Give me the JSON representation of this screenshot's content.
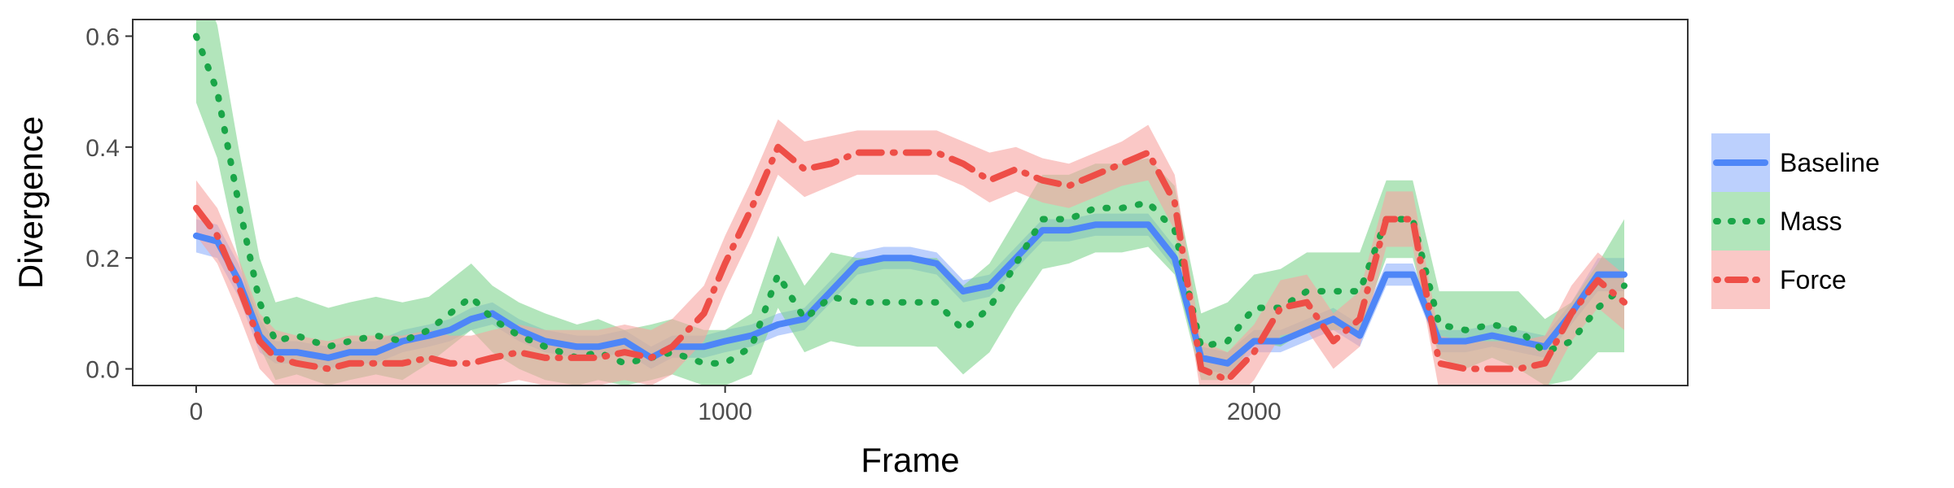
{
  "chart_data": {
    "type": "line",
    "title": "",
    "xlabel": "Frame",
    "ylabel": "Divergence",
    "xlim": [
      -120,
      2820
    ],
    "ylim": [
      -0.03,
      0.63
    ],
    "x_ticks": [
      0,
      1000,
      2000
    ],
    "x_tick_labels": [
      "0",
      "1000",
      "2000"
    ],
    "y_ticks": [
      0.0,
      0.2,
      0.4,
      0.6
    ],
    "y_tick_labels": [
      "0.0",
      "0.2",
      "0.4",
      "0.6"
    ],
    "grid": false,
    "legend_position": "right",
    "series": [
      {
        "name": "Baseline",
        "color": "#4e86f7",
        "band_color": "#8fb1fb",
        "line_style": "solid",
        "x": [
          0,
          40,
          80,
          120,
          150,
          190,
          250,
          290,
          340,
          390,
          440,
          480,
          520,
          560,
          610,
          660,
          720,
          760,
          810,
          860,
          900,
          960,
          1000,
          1050,
          1100,
          1150,
          1200,
          1250,
          1300,
          1350,
          1400,
          1450,
          1500,
          1550,
          1600,
          1650,
          1700,
          1750,
          1800,
          1850,
          1900,
          1950,
          2000,
          2050,
          2100,
          2150,
          2200,
          2250,
          2300,
          2350,
          2400,
          2450,
          2500,
          2550,
          2600,
          2650,
          2700
        ],
        "y": [
          0.24,
          0.23,
          0.16,
          0.06,
          0.03,
          0.03,
          0.02,
          0.03,
          0.03,
          0.05,
          0.06,
          0.07,
          0.09,
          0.1,
          0.07,
          0.05,
          0.04,
          0.04,
          0.05,
          0.02,
          0.04,
          0.04,
          0.05,
          0.06,
          0.08,
          0.09,
          0.14,
          0.19,
          0.2,
          0.2,
          0.19,
          0.14,
          0.15,
          0.2,
          0.25,
          0.25,
          0.26,
          0.26,
          0.26,
          0.2,
          0.02,
          0.01,
          0.05,
          0.05,
          0.07,
          0.09,
          0.06,
          0.17,
          0.17,
          0.05,
          0.05,
          0.06,
          0.05,
          0.04,
          0.1,
          0.17,
          0.17
        ],
        "lower": [
          0.21,
          0.2,
          0.13,
          0.03,
          0.01,
          0.01,
          0.0,
          0.01,
          0.01,
          0.03,
          0.04,
          0.05,
          0.07,
          0.08,
          0.05,
          0.03,
          0.02,
          0.02,
          0.03,
          0.0,
          0.02,
          0.02,
          0.03,
          0.04,
          0.06,
          0.07,
          0.12,
          0.17,
          0.18,
          0.18,
          0.17,
          0.12,
          0.13,
          0.18,
          0.23,
          0.23,
          0.24,
          0.24,
          0.24,
          0.18,
          0.0,
          -0.01,
          0.03,
          0.03,
          0.05,
          0.07,
          0.04,
          0.15,
          0.15,
          0.03,
          0.03,
          0.04,
          0.03,
          0.02,
          0.08,
          0.14,
          0.14
        ],
        "upper": [
          0.27,
          0.26,
          0.19,
          0.09,
          0.05,
          0.05,
          0.04,
          0.05,
          0.05,
          0.07,
          0.08,
          0.09,
          0.11,
          0.12,
          0.09,
          0.07,
          0.06,
          0.06,
          0.07,
          0.04,
          0.06,
          0.06,
          0.07,
          0.08,
          0.1,
          0.11,
          0.16,
          0.21,
          0.22,
          0.22,
          0.21,
          0.16,
          0.17,
          0.22,
          0.27,
          0.27,
          0.28,
          0.28,
          0.28,
          0.22,
          0.04,
          0.03,
          0.07,
          0.07,
          0.09,
          0.11,
          0.08,
          0.19,
          0.19,
          0.07,
          0.07,
          0.08,
          0.07,
          0.06,
          0.12,
          0.2,
          0.2
        ]
      },
      {
        "name": "Mass",
        "color": "#1aa548",
        "band_color": "#7fd38e",
        "line_style": "dotted",
        "x": [
          0,
          40,
          80,
          120,
          150,
          190,
          250,
          290,
          340,
          390,
          440,
          480,
          520,
          560,
          610,
          660,
          720,
          760,
          810,
          860,
          900,
          960,
          1000,
          1050,
          1100,
          1150,
          1200,
          1250,
          1300,
          1350,
          1400,
          1450,
          1500,
          1550,
          1600,
          1650,
          1700,
          1750,
          1800,
          1850,
          1900,
          1950,
          2000,
          2050,
          2100,
          2150,
          2200,
          2250,
          2300,
          2350,
          2400,
          2450,
          2500,
          2550,
          2600,
          2650,
          2700
        ],
        "y": [
          0.6,
          0.5,
          0.3,
          0.12,
          0.05,
          0.06,
          0.04,
          0.05,
          0.06,
          0.05,
          0.07,
          0.1,
          0.13,
          0.09,
          0.06,
          0.04,
          0.02,
          0.03,
          0.01,
          0.02,
          0.03,
          0.01,
          0.01,
          0.04,
          0.17,
          0.09,
          0.13,
          0.12,
          0.12,
          0.12,
          0.12,
          0.07,
          0.11,
          0.19,
          0.27,
          0.27,
          0.29,
          0.29,
          0.3,
          0.25,
          0.04,
          0.05,
          0.11,
          0.11,
          0.14,
          0.14,
          0.14,
          0.27,
          0.27,
          0.08,
          0.07,
          0.08,
          0.07,
          0.03,
          0.05,
          0.11,
          0.15
        ],
        "lower": [
          0.48,
          0.38,
          0.2,
          0.04,
          -0.02,
          -0.01,
          -0.03,
          -0.02,
          -0.01,
          -0.02,
          0.01,
          0.04,
          0.07,
          0.03,
          0.0,
          -0.02,
          -0.03,
          -0.02,
          -0.03,
          -0.02,
          -0.01,
          -0.03,
          -0.03,
          -0.01,
          0.11,
          0.03,
          0.05,
          0.04,
          0.04,
          0.04,
          0.04,
          -0.01,
          0.03,
          0.11,
          0.18,
          0.19,
          0.21,
          0.21,
          0.22,
          0.17,
          -0.02,
          -0.02,
          0.05,
          0.04,
          0.07,
          0.07,
          0.07,
          0.2,
          0.2,
          0.02,
          0.0,
          0.02,
          0.0,
          -0.03,
          -0.02,
          0.03,
          0.03
        ],
        "upper": [
          0.72,
          0.62,
          0.4,
          0.2,
          0.12,
          0.13,
          0.11,
          0.12,
          0.13,
          0.12,
          0.13,
          0.16,
          0.19,
          0.15,
          0.12,
          0.1,
          0.08,
          0.09,
          0.07,
          0.08,
          0.09,
          0.07,
          0.07,
          0.1,
          0.24,
          0.15,
          0.21,
          0.2,
          0.2,
          0.2,
          0.2,
          0.15,
          0.19,
          0.27,
          0.35,
          0.35,
          0.37,
          0.37,
          0.38,
          0.33,
          0.1,
          0.12,
          0.17,
          0.18,
          0.21,
          0.21,
          0.21,
          0.34,
          0.34,
          0.14,
          0.14,
          0.14,
          0.14,
          0.09,
          0.12,
          0.19,
          0.27
        ]
      },
      {
        "name": "Force",
        "color": "#ee4e47",
        "band_color": "#f6a3a0",
        "line_style": "dotdash",
        "x": [
          0,
          40,
          80,
          120,
          150,
          190,
          250,
          290,
          340,
          390,
          440,
          480,
          520,
          560,
          610,
          660,
          720,
          760,
          810,
          860,
          900,
          960,
          1000,
          1050,
          1100,
          1150,
          1200,
          1250,
          1300,
          1350,
          1400,
          1450,
          1500,
          1550,
          1600,
          1650,
          1700,
          1750,
          1800,
          1850,
          1900,
          1950,
          2000,
          2050,
          2100,
          2150,
          2200,
          2250,
          2300,
          2350,
          2400,
          2450,
          2500,
          2550,
          2600,
          2650,
          2700
        ],
        "y": [
          0.29,
          0.24,
          0.15,
          0.05,
          0.02,
          0.01,
          0.0,
          0.01,
          0.01,
          0.01,
          0.02,
          0.01,
          0.01,
          0.02,
          0.03,
          0.02,
          0.02,
          0.02,
          0.03,
          0.02,
          0.04,
          0.1,
          0.19,
          0.29,
          0.4,
          0.36,
          0.37,
          0.39,
          0.39,
          0.39,
          0.39,
          0.37,
          0.34,
          0.36,
          0.34,
          0.33,
          0.35,
          0.37,
          0.39,
          0.3,
          0.0,
          -0.02,
          0.03,
          0.11,
          0.12,
          0.05,
          0.09,
          0.27,
          0.27,
          0.01,
          0.0,
          0.0,
          0.0,
          0.01,
          0.1,
          0.16,
          0.12
        ],
        "lower": [
          0.24,
          0.19,
          0.1,
          0.0,
          -0.03,
          -0.04,
          -0.05,
          -0.04,
          -0.04,
          -0.04,
          -0.03,
          -0.04,
          -0.04,
          -0.03,
          -0.02,
          -0.03,
          -0.03,
          -0.03,
          -0.02,
          -0.03,
          -0.01,
          0.05,
          0.14,
          0.24,
          0.35,
          0.31,
          0.33,
          0.35,
          0.35,
          0.35,
          0.35,
          0.33,
          0.3,
          0.32,
          0.3,
          0.29,
          0.31,
          0.33,
          0.34,
          0.25,
          -0.05,
          -0.07,
          -0.02,
          0.06,
          0.07,
          0.0,
          0.04,
          0.22,
          0.22,
          -0.04,
          -0.05,
          -0.05,
          -0.05,
          -0.04,
          0.05,
          0.11,
          0.07
        ],
        "upper": [
          0.34,
          0.29,
          0.2,
          0.1,
          0.07,
          0.06,
          0.05,
          0.06,
          0.06,
          0.06,
          0.07,
          0.06,
          0.06,
          0.07,
          0.08,
          0.07,
          0.07,
          0.07,
          0.08,
          0.07,
          0.09,
          0.15,
          0.24,
          0.34,
          0.45,
          0.41,
          0.42,
          0.43,
          0.43,
          0.43,
          0.43,
          0.41,
          0.39,
          0.4,
          0.38,
          0.37,
          0.39,
          0.41,
          0.44,
          0.35,
          0.05,
          0.03,
          0.08,
          0.16,
          0.17,
          0.1,
          0.14,
          0.32,
          0.32,
          0.06,
          0.05,
          0.05,
          0.05,
          0.06,
          0.15,
          0.21,
          0.17
        ]
      }
    ]
  }
}
